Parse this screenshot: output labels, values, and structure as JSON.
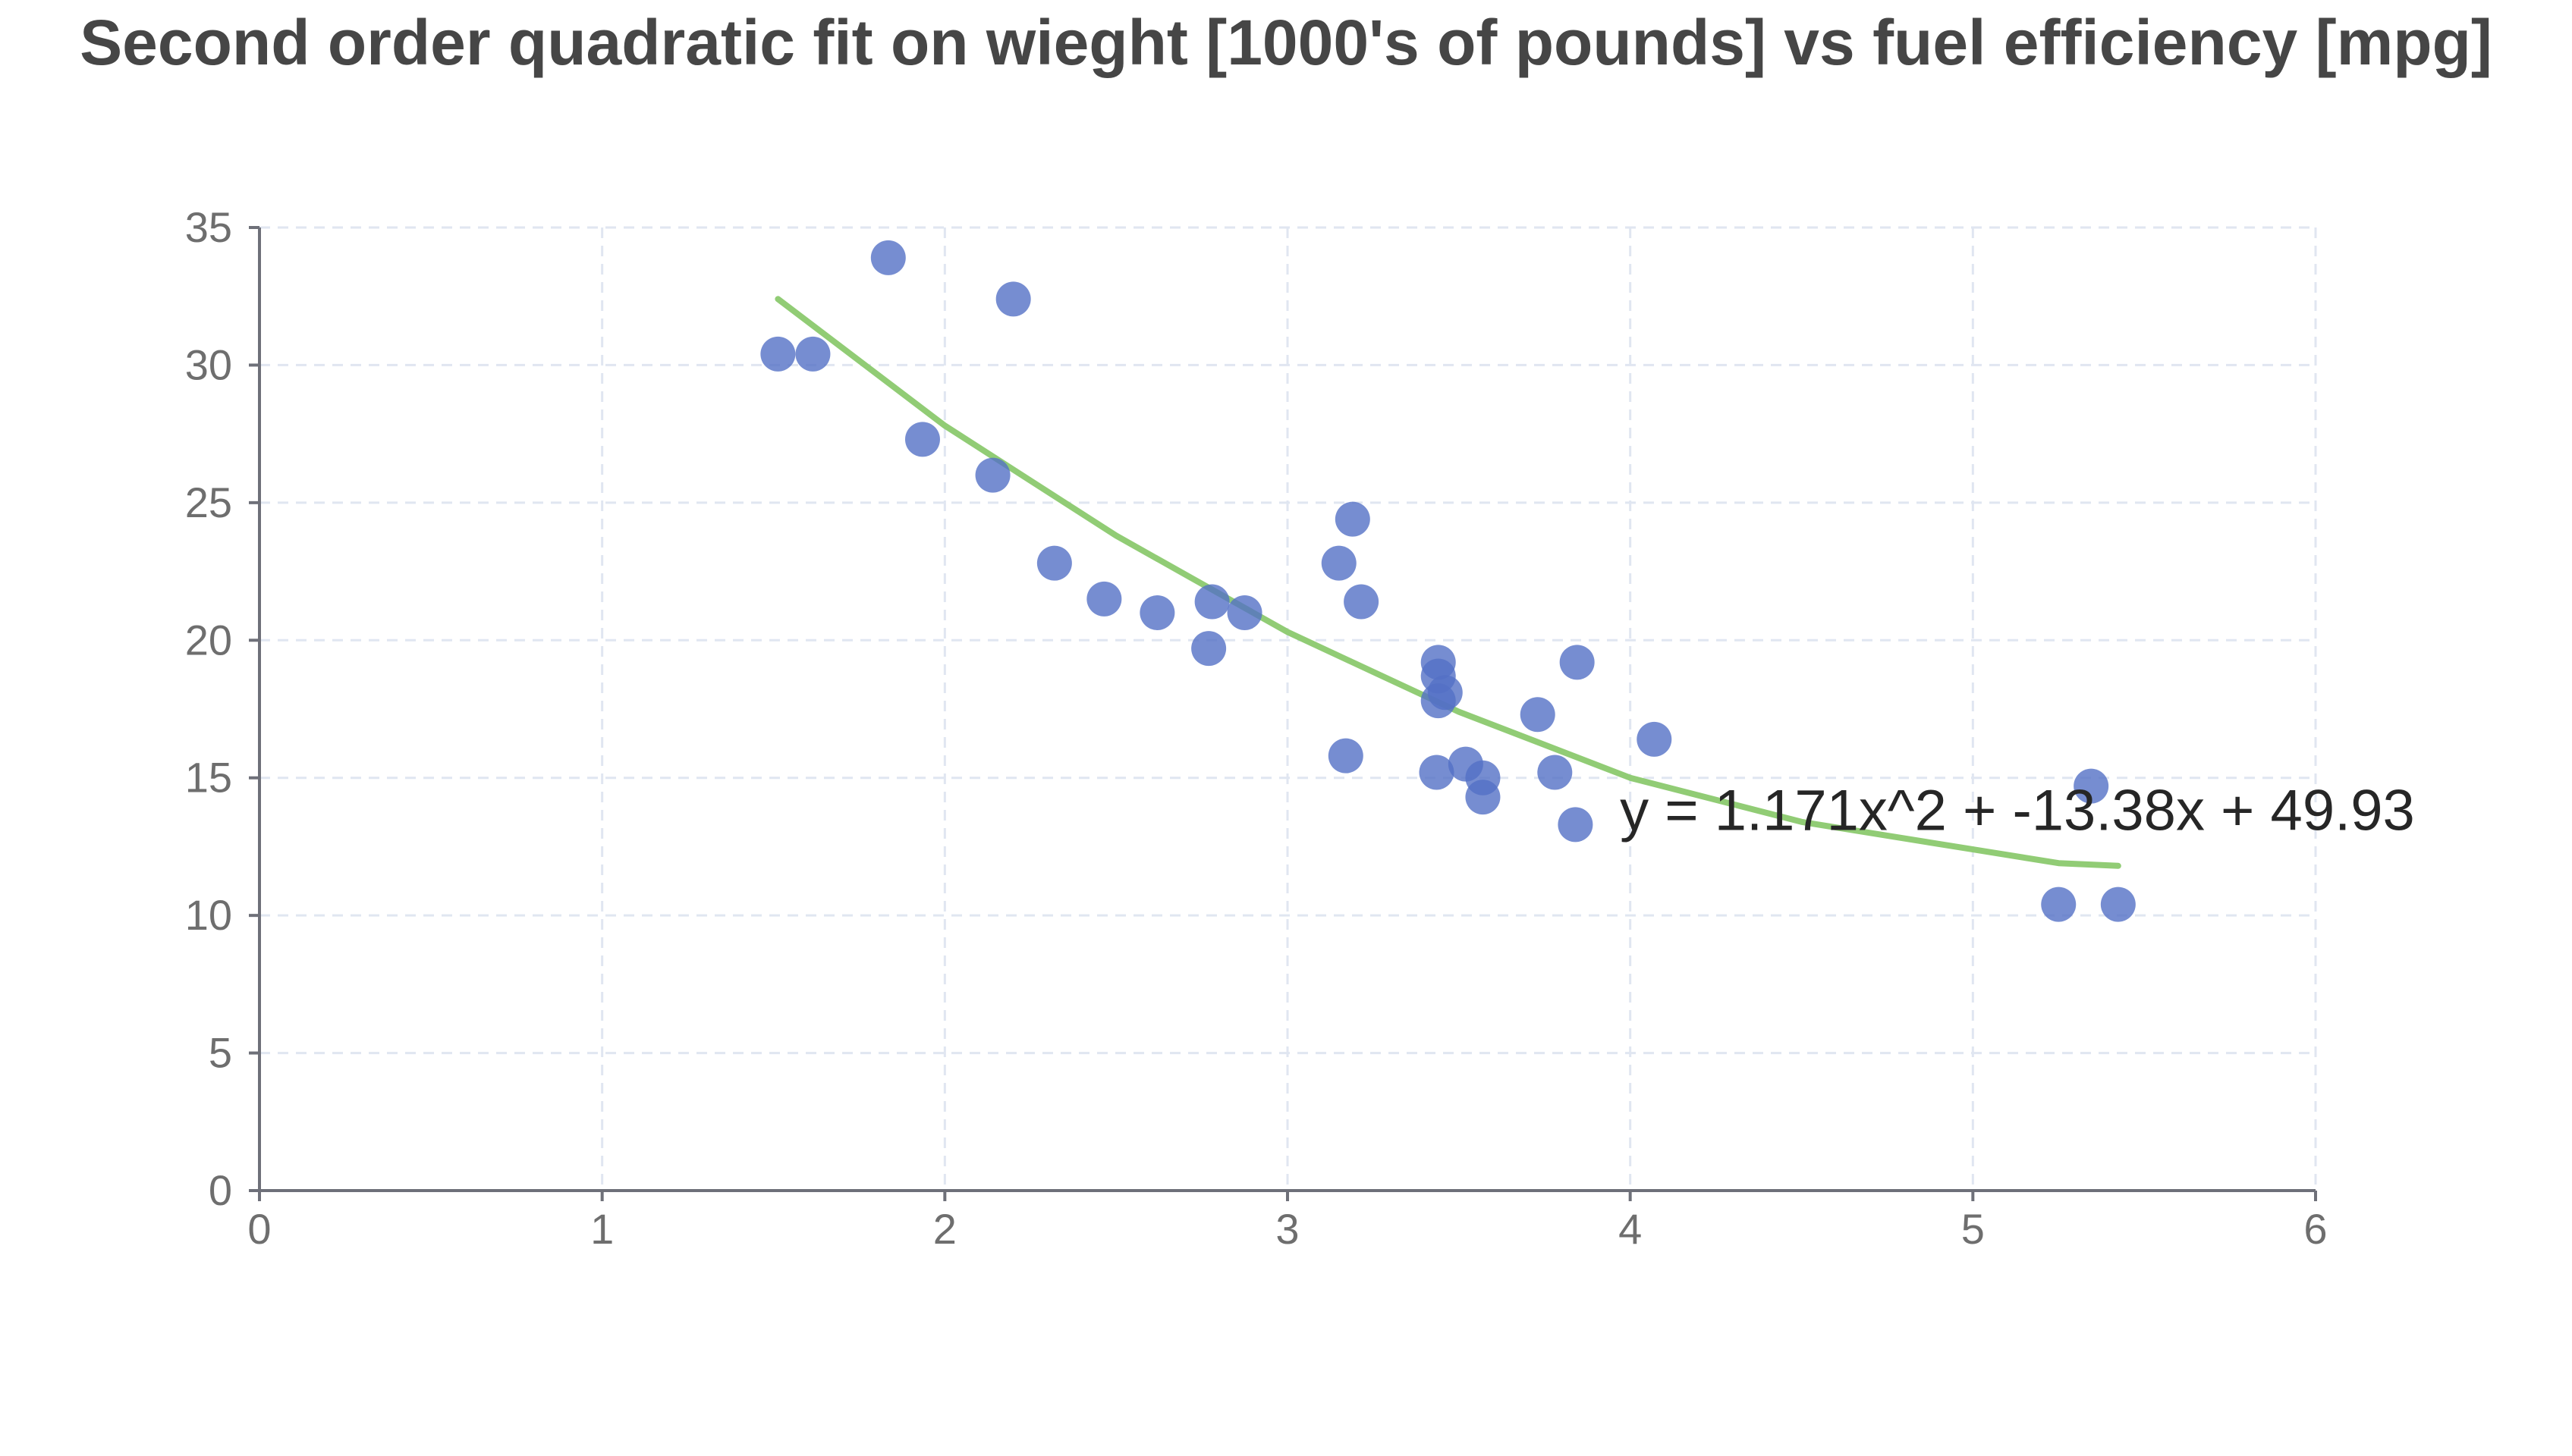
{
  "chart_data": {
    "type": "scatter",
    "title": "Second order quadratic fit on wieght [1000's of pounds] vs fuel efficiency [mpg]",
    "xlabel": "",
    "ylabel": "",
    "xlim": [
      0,
      6
    ],
    "ylim": [
      0,
      35
    ],
    "x_ticks": [
      "0",
      "1",
      "2",
      "3",
      "4",
      "5",
      "6"
    ],
    "y_ticks": [
      "0",
      "5",
      "10",
      "15",
      "20",
      "25",
      "30",
      "35"
    ],
    "grid": true,
    "legend": "none",
    "colors": {
      "points": "#5470c6",
      "fit_line": "#91cc75",
      "grid": "#e0e6f1",
      "axis": "#6e7079"
    },
    "series": [
      {
        "type": "scatter",
        "points": [
          [
            2.62,
            21.0
          ],
          [
            2.875,
            21.0
          ],
          [
            2.32,
            22.8
          ],
          [
            3.215,
            21.4
          ],
          [
            3.44,
            18.7
          ],
          [
            3.46,
            18.1
          ],
          [
            3.57,
            14.3
          ],
          [
            3.19,
            24.4
          ],
          [
            3.15,
            22.8
          ],
          [
            3.44,
            19.2
          ],
          [
            3.44,
            17.8
          ],
          [
            4.07,
            16.4
          ],
          [
            3.73,
            17.3
          ],
          [
            3.78,
            15.2
          ],
          [
            5.25,
            10.4
          ],
          [
            5.424,
            10.4
          ],
          [
            5.345,
            14.7
          ],
          [
            2.2,
            32.4
          ],
          [
            1.615,
            30.4
          ],
          [
            1.835,
            33.9
          ],
          [
            2.465,
            21.5
          ],
          [
            3.52,
            15.5
          ],
          [
            3.435,
            15.2
          ],
          [
            3.84,
            13.3
          ],
          [
            3.845,
            19.2
          ],
          [
            1.935,
            27.3
          ],
          [
            2.14,
            26.0
          ],
          [
            1.513,
            30.4
          ],
          [
            3.17,
            15.8
          ],
          [
            2.77,
            19.7
          ],
          [
            3.57,
            15.0
          ],
          [
            2.78,
            21.4
          ]
        ]
      },
      {
        "type": "line",
        "x": [
          1.513,
          2.0,
          2.5,
          3.0,
          3.5,
          4.0,
          4.5,
          5.0,
          5.25,
          5.424
        ],
        "values": [
          32.4,
          27.8,
          23.8,
          20.3,
          17.4,
          15.0,
          13.4,
          12.4,
          11.9,
          11.8
        ]
      }
    ],
    "annotation": {
      "text": "y = 1.171x^2 + -13.38x + 49.93",
      "x": 3.97,
      "y": 13.1
    }
  }
}
